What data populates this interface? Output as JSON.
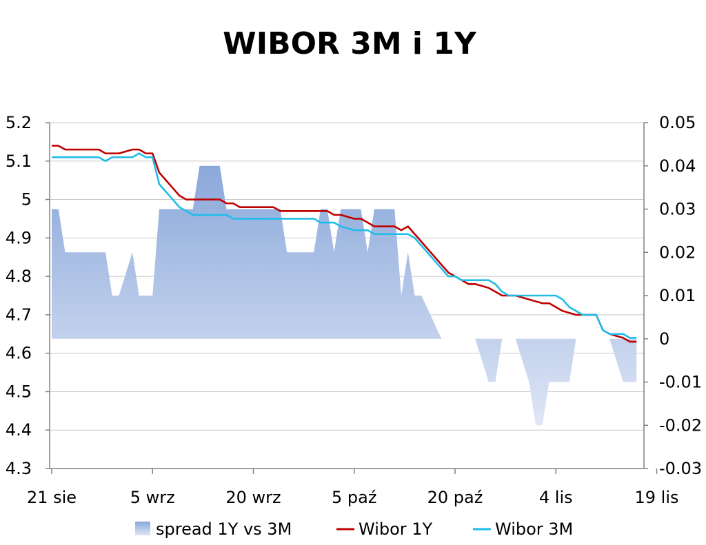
{
  "chart_data": {
    "type": "line",
    "title": "WIBOR 3M i 1Y",
    "xlabel": "",
    "ylabel": "",
    "x_start": "2019-08-21",
    "x_ticks": [
      "21 sie",
      "5 wrz",
      "20 wrz",
      "5 paź",
      "20 paź",
      "4 lis",
      "19 lis"
    ],
    "y_left": {
      "range": [
        4.3,
        5.2
      ],
      "ticks": [
        "5.2",
        "5.1",
        "5",
        "4.9",
        "4.8",
        "4.7",
        "4.6",
        "4.5",
        "4.4",
        "4.3"
      ],
      "tick_values": [
        5.2,
        5.1,
        5.0,
        4.9,
        4.8,
        4.7,
        4.6,
        4.5,
        4.4,
        4.3
      ]
    },
    "y_right": {
      "range": [
        -0.03,
        0.05
      ],
      "ticks": [
        "0.05",
        "0.04",
        "0.03",
        "0.02",
        "0.01",
        "0",
        "-0.01",
        "-0.02",
        "-0.03"
      ],
      "tick_values": [
        0.05,
        0.04,
        0.03,
        0.02,
        0.01,
        0,
        -0.01,
        -0.02,
        -0.03
      ]
    },
    "grid": true,
    "legend_position": "bottom",
    "series": [
      {
        "name": "spread 1Y vs 3M",
        "type": "area",
        "axis": "right",
        "color": "#8ea9db",
        "points": [
          [
            0,
            0.03
          ],
          [
            1,
            0.03
          ],
          [
            2,
            0.02
          ],
          [
            3,
            0.02
          ],
          [
            4,
            0.02
          ],
          [
            5,
            0.02
          ],
          [
            6,
            0.02
          ],
          [
            7,
            0.02
          ],
          [
            8,
            0.02
          ],
          [
            9,
            0.01
          ],
          [
            10,
            0.01
          ],
          [
            11,
            0.015
          ],
          [
            12,
            0.02
          ],
          [
            13,
            0.01
          ],
          [
            14,
            0.01
          ],
          [
            15,
            0.01
          ],
          [
            16,
            0.03
          ],
          [
            17,
            0.03
          ],
          [
            18,
            0.03
          ],
          [
            19,
            0.03
          ],
          [
            20,
            0.03
          ],
          [
            21,
            0.03
          ],
          [
            22,
            0.04
          ],
          [
            23,
            0.04
          ],
          [
            24,
            0.04
          ],
          [
            25,
            0.04
          ],
          [
            26,
            0.03
          ],
          [
            27,
            0.03
          ],
          [
            28,
            0.03
          ],
          [
            29,
            0.03
          ],
          [
            30,
            0.03
          ],
          [
            31,
            0.03
          ],
          [
            32,
            0.03
          ],
          [
            33,
            0.03
          ],
          [
            34,
            0.03
          ],
          [
            35,
            0.02
          ],
          [
            36,
            0.02
          ],
          [
            37,
            0.02
          ],
          [
            38,
            0.02
          ],
          [
            39,
            0.02
          ],
          [
            40,
            0.03
          ],
          [
            41,
            0.03
          ],
          [
            42,
            0.02
          ],
          [
            43,
            0.03
          ],
          [
            44,
            0.03
          ],
          [
            45,
            0.03
          ],
          [
            46,
            0.03
          ],
          [
            47,
            0.02
          ],
          [
            48,
            0.03
          ],
          [
            49,
            0.03
          ],
          [
            50,
            0.03
          ],
          [
            51,
            0.03
          ],
          [
            52,
            0.01
          ],
          [
            53,
            0.02
          ],
          [
            54,
            0.01
          ],
          [
            55,
            0.01
          ],
          [
            56,
            0.0067
          ],
          [
            57,
            0.0033
          ],
          [
            58,
            0
          ],
          [
            59,
            0
          ],
          [
            60,
            0
          ],
          [
            61,
            0
          ],
          [
            62,
            0
          ],
          [
            63,
            0
          ],
          [
            64,
            -0.005
          ],
          [
            65,
            -0.01
          ],
          [
            66,
            -0.01
          ],
          [
            67,
            0
          ],
          [
            68,
            0
          ],
          [
            69,
            0
          ],
          [
            70,
            -0.005
          ],
          [
            71,
            -0.01
          ],
          [
            72,
            -0.02
          ],
          [
            73,
            -0.02
          ],
          [
            74,
            -0.01
          ],
          [
            75,
            -0.01
          ],
          [
            76,
            -0.01
          ],
          [
            77,
            -0.01
          ],
          [
            78,
            0
          ],
          [
            79,
            0
          ],
          [
            80,
            0
          ],
          [
            81,
            0
          ],
          [
            82,
            0
          ],
          [
            83,
            0
          ],
          [
            84,
            -0.005
          ],
          [
            85,
            -0.01
          ],
          [
            86,
            -0.01
          ],
          [
            87,
            -0.01
          ]
        ]
      },
      {
        "name": "Wibor 1Y",
        "type": "line",
        "axis": "left",
        "color": "#c00000",
        "points": [
          [
            0,
            5.14
          ],
          [
            1,
            5.14
          ],
          [
            2,
            5.13
          ],
          [
            3,
            5.13
          ],
          [
            4,
            5.13
          ],
          [
            5,
            5.13
          ],
          [
            6,
            5.13
          ],
          [
            7,
            5.13
          ],
          [
            8,
            5.12
          ],
          [
            9,
            5.12
          ],
          [
            10,
            5.12
          ],
          [
            11,
            5.125
          ],
          [
            12,
            5.13
          ],
          [
            13,
            5.13
          ],
          [
            14,
            5.12
          ],
          [
            15,
            5.12
          ],
          [
            16,
            5.07
          ],
          [
            17,
            5.05
          ],
          [
            18,
            5.03
          ],
          [
            19,
            5.01
          ],
          [
            20,
            5.0
          ],
          [
            21,
            5.0
          ],
          [
            22,
            5.0
          ],
          [
            23,
            5.0
          ],
          [
            24,
            5.0
          ],
          [
            25,
            5.0
          ],
          [
            26,
            4.99
          ],
          [
            27,
            4.99
          ],
          [
            28,
            4.98
          ],
          [
            29,
            4.98
          ],
          [
            30,
            4.98
          ],
          [
            31,
            4.98
          ],
          [
            32,
            4.98
          ],
          [
            33,
            4.98
          ],
          [
            34,
            4.97
          ],
          [
            35,
            4.97
          ],
          [
            36,
            4.97
          ],
          [
            37,
            4.97
          ],
          [
            38,
            4.97
          ],
          [
            39,
            4.97
          ],
          [
            40,
            4.97
          ],
          [
            41,
            4.97
          ],
          [
            42,
            4.96
          ],
          [
            43,
            4.96
          ],
          [
            44,
            4.955
          ],
          [
            45,
            4.95
          ],
          [
            46,
            4.95
          ],
          [
            47,
            4.94
          ],
          [
            48,
            4.93
          ],
          [
            49,
            4.93
          ],
          [
            50,
            4.93
          ],
          [
            51,
            4.93
          ],
          [
            52,
            4.92
          ],
          [
            53,
            4.93
          ],
          [
            54,
            4.91
          ],
          [
            55,
            4.89
          ],
          [
            56,
            4.87
          ],
          [
            57,
            4.85
          ],
          [
            58,
            4.83
          ],
          [
            59,
            4.81
          ],
          [
            60,
            4.8
          ],
          [
            61,
            4.79
          ],
          [
            62,
            4.78
          ],
          [
            63,
            4.78
          ],
          [
            64,
            4.775
          ],
          [
            65,
            4.77
          ],
          [
            66,
            4.76
          ],
          [
            67,
            4.75
          ],
          [
            68,
            4.75
          ],
          [
            69,
            4.75
          ],
          [
            70,
            4.745
          ],
          [
            71,
            4.74
          ],
          [
            72,
            4.735
          ],
          [
            73,
            4.73
          ],
          [
            74,
            4.73
          ],
          [
            75,
            4.72
          ],
          [
            76,
            4.71
          ],
          [
            77,
            4.705
          ],
          [
            78,
            4.7
          ],
          [
            79,
            4.7
          ],
          [
            80,
            4.7
          ],
          [
            81,
            4.7
          ],
          [
            82,
            4.66
          ],
          [
            83,
            4.65
          ],
          [
            84,
            4.645
          ],
          [
            85,
            4.64
          ],
          [
            86,
            4.63
          ],
          [
            87,
            4.63
          ]
        ]
      },
      {
        "name": "Wibor 3M",
        "type": "line",
        "axis": "left",
        "color": "#1fbce8",
        "points": [
          [
            0,
            5.11
          ],
          [
            1,
            5.11
          ],
          [
            2,
            5.11
          ],
          [
            3,
            5.11
          ],
          [
            4,
            5.11
          ],
          [
            5,
            5.11
          ],
          [
            6,
            5.11
          ],
          [
            7,
            5.11
          ],
          [
            8,
            5.1
          ],
          [
            9,
            5.11
          ],
          [
            10,
            5.11
          ],
          [
            11,
            5.11
          ],
          [
            12,
            5.11
          ],
          [
            13,
            5.12
          ],
          [
            14,
            5.11
          ],
          [
            15,
            5.11
          ],
          [
            16,
            5.04
          ],
          [
            17,
            5.02
          ],
          [
            18,
            5.0
          ],
          [
            19,
            4.98
          ],
          [
            20,
            4.97
          ],
          [
            21,
            4.96
          ],
          [
            22,
            4.96
          ],
          [
            23,
            4.96
          ],
          [
            24,
            4.96
          ],
          [
            25,
            4.96
          ],
          [
            26,
            4.96
          ],
          [
            27,
            4.95
          ],
          [
            28,
            4.95
          ],
          [
            29,
            4.95
          ],
          [
            30,
            4.95
          ],
          [
            31,
            4.95
          ],
          [
            32,
            4.95
          ],
          [
            33,
            4.95
          ],
          [
            34,
            4.95
          ],
          [
            35,
            4.95
          ],
          [
            36,
            4.95
          ],
          [
            37,
            4.95
          ],
          [
            38,
            4.95
          ],
          [
            39,
            4.95
          ],
          [
            40,
            4.94
          ],
          [
            41,
            4.94
          ],
          [
            42,
            4.94
          ],
          [
            43,
            4.93
          ],
          [
            44,
            4.925
          ],
          [
            45,
            4.92
          ],
          [
            46,
            4.92
          ],
          [
            47,
            4.92
          ],
          [
            48,
            4.91
          ],
          [
            49,
            4.91
          ],
          [
            50,
            4.91
          ],
          [
            51,
            4.91
          ],
          [
            52,
            4.91
          ],
          [
            53,
            4.91
          ],
          [
            54,
            4.9
          ],
          [
            55,
            4.88
          ],
          [
            56,
            4.86
          ],
          [
            57,
            4.84
          ],
          [
            58,
            4.82
          ],
          [
            59,
            4.8
          ],
          [
            60,
            4.8
          ],
          [
            61,
            4.79
          ],
          [
            62,
            4.79
          ],
          [
            63,
            4.79
          ],
          [
            64,
            4.79
          ],
          [
            65,
            4.79
          ],
          [
            66,
            4.78
          ],
          [
            67,
            4.76
          ],
          [
            68,
            4.75
          ],
          [
            69,
            4.75
          ],
          [
            70,
            4.75
          ],
          [
            71,
            4.75
          ],
          [
            72,
            4.75
          ],
          [
            73,
            4.75
          ],
          [
            74,
            4.75
          ],
          [
            75,
            4.75
          ],
          [
            76,
            4.74
          ],
          [
            77,
            4.72
          ],
          [
            78,
            4.71
          ],
          [
            79,
            4.7
          ],
          [
            80,
            4.7
          ],
          [
            81,
            4.7
          ],
          [
            82,
            4.66
          ],
          [
            83,
            4.65
          ],
          [
            84,
            4.65
          ],
          [
            85,
            4.65
          ],
          [
            86,
            4.64
          ],
          [
            87,
            4.64
          ]
        ]
      }
    ]
  }
}
